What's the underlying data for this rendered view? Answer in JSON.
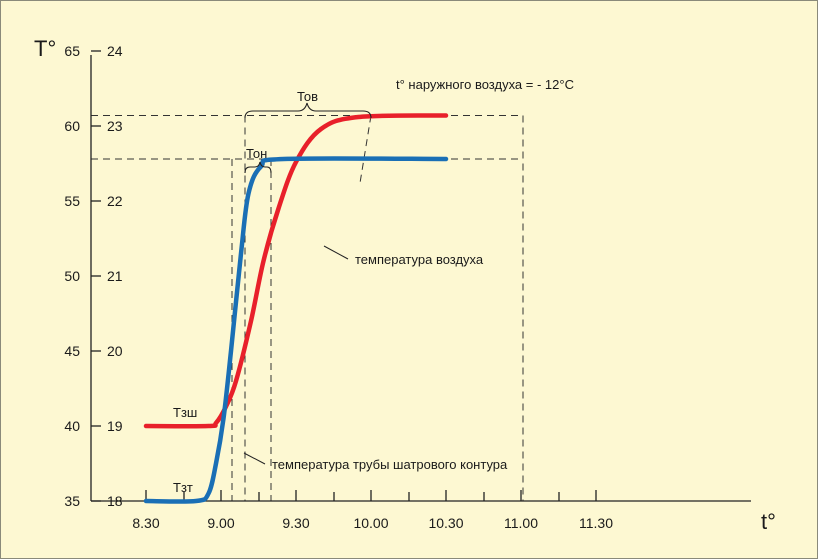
{
  "chart_data": {
    "type": "line",
    "y_axis_label": "T°",
    "x_axis_label": "t°",
    "y_ticks_primary": [
      35,
      40,
      45,
      50,
      55,
      60,
      65
    ],
    "y_ticks_secondary": [
      18,
      19,
      20,
      21,
      22,
      23,
      24
    ],
    "x_ticks": [
      "8.30",
      "9.00",
      "9.30",
      "10.00",
      "10.30",
      "11.00",
      "11.30"
    ],
    "xlim_minutes": [
      510,
      690
    ],
    "ylim": [
      35,
      65
    ],
    "note": "t° наружного воздуха = - 12°C",
    "series": [
      {
        "color": "#e8202a",
        "label": "Тзш",
        "points": [
          [
            510,
            40
          ],
          [
            535,
            40
          ],
          [
            538,
            40.2
          ],
          [
            542,
            41.3
          ],
          [
            546,
            43
          ],
          [
            552,
            47
          ],
          [
            557,
            51
          ],
          [
            563,
            54.5
          ],
          [
            570,
            57.6
          ],
          [
            580,
            59.8
          ],
          [
            595,
            60.6
          ],
          [
            630,
            60.7
          ]
        ]
      },
      {
        "color": "#1a6fb5",
        "label": "Тзт",
        "points": [
          [
            510,
            35
          ],
          [
            530,
            35
          ],
          [
            535,
            35.5
          ],
          [
            538,
            37.5
          ],
          [
            541,
            40.5
          ],
          [
            544,
            45
          ],
          [
            548,
            51.5
          ],
          [
            551,
            55.5
          ],
          [
            556,
            57.3
          ],
          [
            565,
            57.8
          ],
          [
            630,
            57.8
          ]
        ]
      }
    ],
    "annotations": [
      {
        "label": "Тов"
      },
      {
        "label": "Тон"
      },
      {
        "label": "температура воздуха"
      },
      {
        "label": "температура трубы шатрового контура"
      }
    ]
  }
}
